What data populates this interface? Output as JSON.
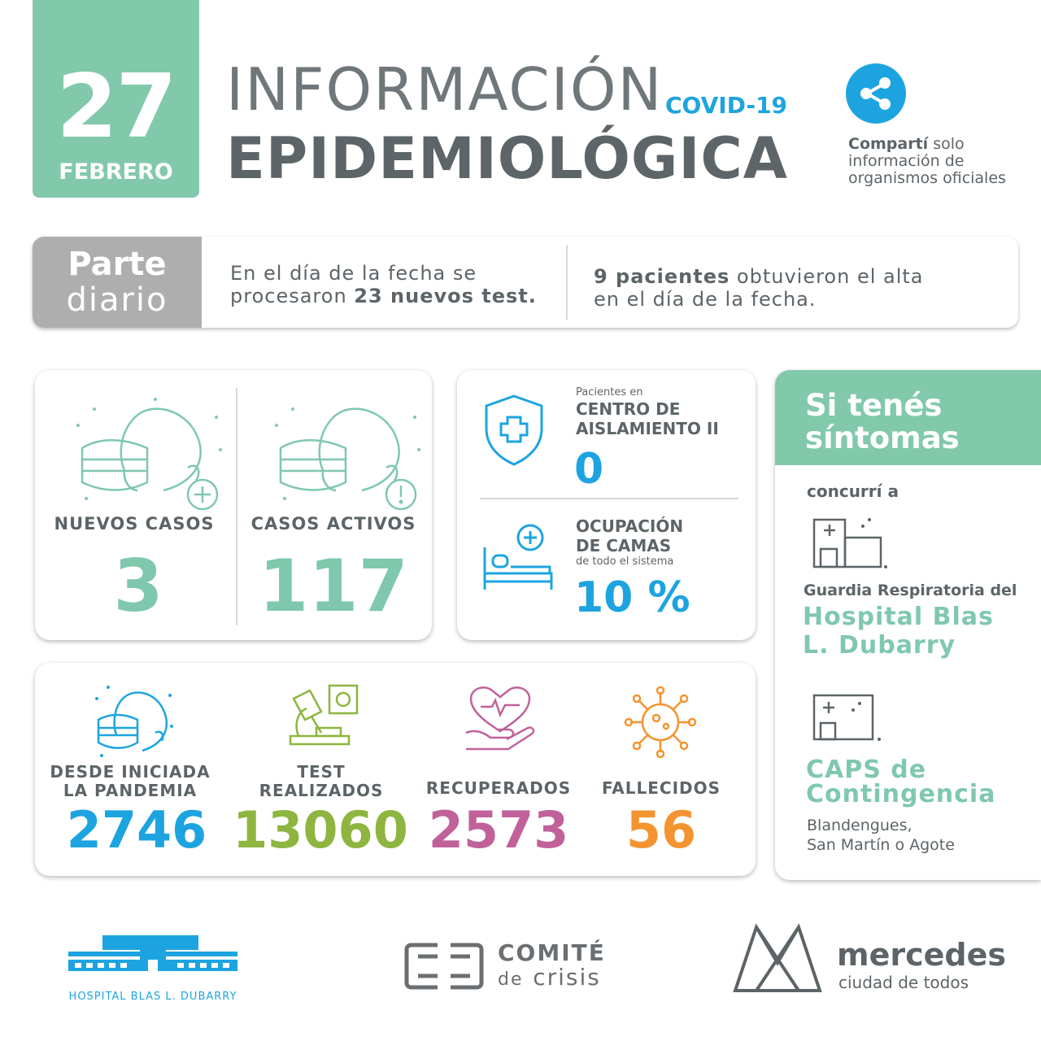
{
  "date": {
    "day": "27",
    "month": "FEBRERO"
  },
  "title": {
    "line1": "INFORMACIÓN",
    "tag": "COVID-19",
    "line2": "EPIDEMIOLÓGICA"
  },
  "share": {
    "bold": "Compartí",
    "rest1": " solo",
    "line2": "información de",
    "line3": "organismos oficiales",
    "icon": "share-icon"
  },
  "parte": {
    "label1": "Parte",
    "label2": "diario",
    "tests_line1": "En el día de la fecha se",
    "tests_line2_a": "procesaron ",
    "tests_line2_b": "23 nuevos test.",
    "alta_a": "9 pacientes",
    "alta_b": " obtuvieron el alta",
    "alta_line2": "en el día de la fecha."
  },
  "cases": {
    "nuevos_label": "NUEVOS CASOS",
    "nuevos_value": "3",
    "activos_label": "CASOS ACTIVOS",
    "activos_value": "117"
  },
  "center": {
    "small": "Pacientes en",
    "title1": "CENTRO DE",
    "title2": "AISLAMIENTO II",
    "value": "0",
    "camas1": "OCUPACIÓN",
    "camas2": "DE CAMAS",
    "camas_sub": "de todo el sistema",
    "camas_value": "10 %"
  },
  "totals": {
    "pandemia_l1": "DESDE INICIADA",
    "pandemia_l2": "LA PANDEMIA",
    "pandemia_value": "2746",
    "test_l1": "TEST",
    "test_l2": "REALIZADOS",
    "test_value": "13060",
    "recup_label": "RECUPERADOS",
    "recup_value": "2573",
    "fallec_label": "FALLECIDOS",
    "fallec_value": "56"
  },
  "side": {
    "title1": "Si tenés",
    "title2": "síntomas",
    "concurri": "concurrí a",
    "guardia": "Guardia Respiratoria del",
    "hospital1": "Hospital Blas",
    "hospital2": "L. Dubarry",
    "caps1": "CAPS de",
    "caps2": "Contingencia",
    "caps_place1": "Blandengues,",
    "caps_place2": "San Martín o Agote"
  },
  "footer": {
    "hospital": "HOSPITAL BLAS L. DUBARRY",
    "comite1": "COMITÉ",
    "comite2a": "de",
    "comite2b": "crisis",
    "mercedes1": "mercedes",
    "mercedes2": "ciudad de todos"
  },
  "colors": {
    "green": "#82c9ab",
    "blue": "#1da4e0",
    "olive": "#8db53f",
    "pink": "#c1619a",
    "orange": "#f39431",
    "gray": "#5d6468",
    "teal": "#7fc8ad"
  }
}
